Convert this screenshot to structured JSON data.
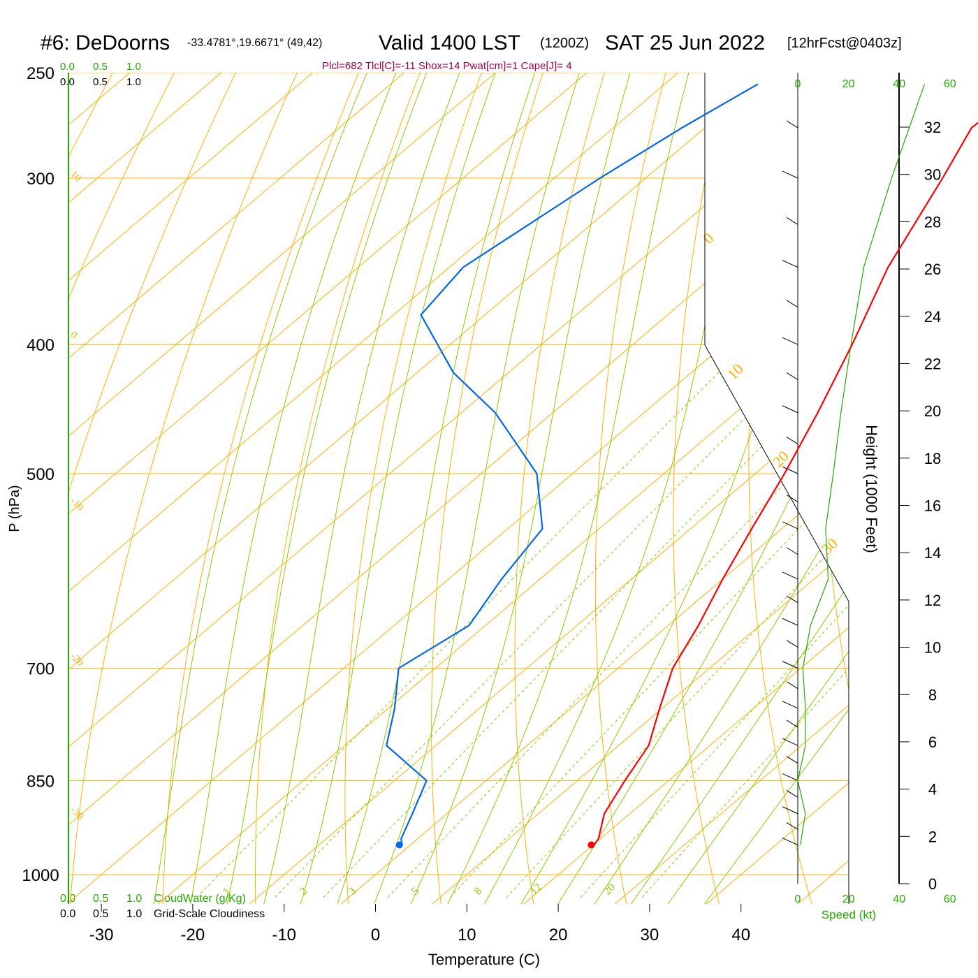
{
  "header": {
    "station": "#6: DeDoorns",
    "coords": "-33.4781°,19.6671° (49,42)",
    "valid": "Valid 1400 LST",
    "zulu": "(1200Z)",
    "date": "SAT 25 Jun 2022",
    "fcst": "[12hrFcst@0403z]",
    "indices": "Plcl=682 Tlcl[C]=-11 Shox=14 Pwat[cm]=1 Cape[J]= 4"
  },
  "colors": {
    "temperature": "#ff0000",
    "dewpoint": "#0066ee",
    "isotherm_isobar": "#ffb000",
    "dry_adiabat": "#ffb000",
    "moist_adiabat": "#8ccc00",
    "mixing_ratio": "#8ccc00",
    "green_label": "#22aa00",
    "wind_speed": "#22aa00",
    "parcel_label": "#aa0044"
  },
  "chart_data": {
    "type": "skew-t log-p",
    "title": "#6: DeDoorns -33.4781°,19.6671° (49,42)  Valid 1400 LST (1200Z) SAT 25 Jun 2022 [12hrFcst@0403z]",
    "xlabel": "Temperature (C)",
    "ylabel": "P (hPa)",
    "y2label": "Height (1000 Feet)",
    "x_ticks": [
      -30,
      -20,
      -10,
      0,
      10,
      20,
      30,
      40
    ],
    "p_ticks": [
      250,
      300,
      400,
      500,
      700,
      850,
      1000
    ],
    "height_ticks": [
      0,
      2,
      4,
      6,
      8,
      10,
      12,
      14,
      16,
      18,
      20,
      22,
      24,
      26,
      28,
      30,
      32
    ],
    "dry_adiabat_labels": [
      "10",
      "0",
      "-10",
      "-20",
      "-30"
    ],
    "dry_adiabat_right_labels": [
      "0",
      "10",
      "20",
      "30"
    ],
    "mixing_ratio_labels": [
      "1",
      "2",
      "3",
      "5",
      "8",
      "12",
      "20"
    ],
    "cloud_scale_top_green": [
      "0.0",
      "0.5",
      "1.0"
    ],
    "cloud_scale_top_black": [
      "0.0",
      "0.5",
      "1.0"
    ],
    "cloud_scale_bottom_green": [
      "0.0",
      "0.5",
      "1.0"
    ],
    "cloud_scale_bottom_black": [
      "0.0",
      "0.5",
      "1.0"
    ],
    "cloudwater_label": "CloudWater (g/Kg)",
    "cloudiness_label": "Grid-Scale Cloudiness",
    "speed_ticks": [
      "0",
      "20",
      "40",
      "60"
    ],
    "speed_label": "Speed (kt)",
    "temperature": [
      {
        "p": 255,
        "t": -30.3
      },
      {
        "p": 275,
        "t": -30.8
      },
      {
        "p": 300,
        "t": -27.5
      },
      {
        "p": 350,
        "t": -22.0
      },
      {
        "p": 400,
        "t": -16.0
      },
      {
        "p": 450,
        "t": -11.0
      },
      {
        "p": 500,
        "t": -6.8
      },
      {
        "p": 550,
        "t": -3.3
      },
      {
        "p": 600,
        "t": 0.0
      },
      {
        "p": 650,
        "t": 3.3
      },
      {
        "p": 700,
        "t": 6.0
      },
      {
        "p": 750,
        "t": 9.7
      },
      {
        "p": 800,
        "t": 13.3
      },
      {
        "p": 850,
        "t": 15.2
      },
      {
        "p": 900,
        "t": 17.2
      },
      {
        "p": 940,
        "t": 19.8
      },
      {
        "p": 950,
        "t": 20.1
      }
    ],
    "dewpoint": [
      {
        "p": 255,
        "t": -59.8
      },
      {
        "p": 275,
        "t": -62.5
      },
      {
        "p": 300,
        "t": -65.0
      },
      {
        "p": 350,
        "t": -68.5
      },
      {
        "p": 380,
        "t": -67.0
      },
      {
        "p": 420,
        "t": -56.0
      },
      {
        "p": 450,
        "t": -46.3
      },
      {
        "p": 500,
        "t": -33.9
      },
      {
        "p": 550,
        "t": -26.2
      },
      {
        "p": 600,
        "t": -24.2
      },
      {
        "p": 650,
        "t": -21.8
      },
      {
        "p": 700,
        "t": -24.0
      },
      {
        "p": 750,
        "t": -19.3
      },
      {
        "p": 800,
        "t": -15.4
      },
      {
        "p": 850,
        "t": -6.5
      },
      {
        "p": 900,
        "t": -3.8
      },
      {
        "p": 940,
        "t": -1.8
      },
      {
        "p": 950,
        "t": -0.9
      }
    ],
    "surface_temperature": {
      "p": 950,
      "t": 19.8
    },
    "surface_dewpoint": {
      "p": 950,
      "t": -1.2
    },
    "wind_speed_kt": [
      {
        "p": 950,
        "v": 1
      },
      {
        "p": 900,
        "v": 3
      },
      {
        "p": 850,
        "v": 0
      },
      {
        "p": 800,
        "v": 3
      },
      {
        "p": 750,
        "v": 3
      },
      {
        "p": 700,
        "v": 2
      },
      {
        "p": 650,
        "v": 5
      },
      {
        "p": 600,
        "v": 12
      },
      {
        "p": 550,
        "v": 11
      },
      {
        "p": 500,
        "v": 14
      },
      {
        "p": 450,
        "v": 17
      },
      {
        "p": 400,
        "v": 21
      },
      {
        "p": 350,
        "v": 26
      },
      {
        "p": 300,
        "v": 37
      },
      {
        "p": 255,
        "v": 50
      }
    ]
  }
}
